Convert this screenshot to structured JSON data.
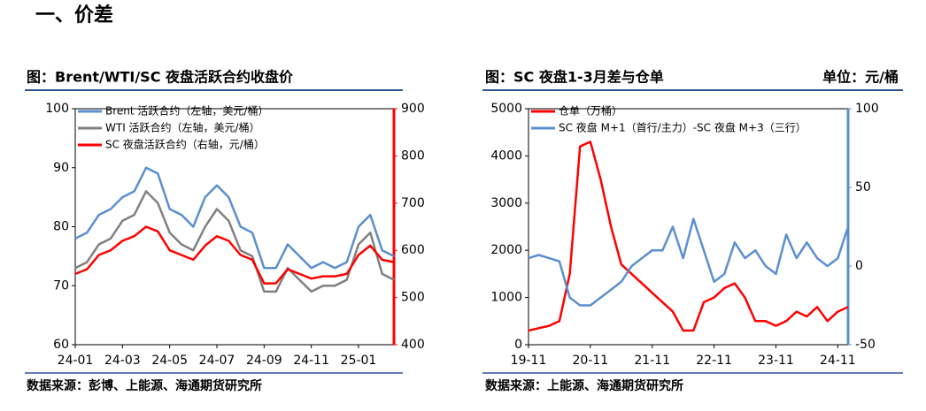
{
  "heading": "一、价差",
  "chart_data": [
    {
      "type": "line",
      "title": "图：Brent/WTI/SC 夜盘活跃合约收盘价",
      "source": "数据来源：彭博、上能源、海通期货研究所",
      "categories": [
        "24-01",
        null,
        null,
        null,
        "24-03",
        null,
        null,
        null,
        "24-05",
        null,
        null,
        null,
        "24-07",
        null,
        null,
        null,
        "24-09",
        null,
        null,
        null,
        "24-11",
        null,
        null,
        null,
        "25-01",
        null,
        null,
        null
      ],
      "ylim": [
        60,
        100
      ],
      "yticks": [
        60,
        70,
        80,
        90,
        100
      ],
      "y2lim": [
        400,
        900
      ],
      "y2ticks": [
        400,
        500,
        600,
        700,
        800,
        900
      ],
      "y2color": "#ff0000",
      "legend": "upper left",
      "series": [
        {
          "name": "Brent 活跃合约（左轴，美元/桶）",
          "color": "#5b8fd0",
          "values": [
            78,
            79,
            82,
            83,
            85,
            86,
            90,
            89,
            83,
            82,
            80,
            85,
            87,
            85,
            80,
            79,
            73,
            73,
            77,
            75,
            73,
            74,
            73,
            74,
            80,
            82,
            76,
            75
          ]
        },
        {
          "name": "WTI 活跃合约（左轴，美元/桶）",
          "color": "#808080",
          "values": [
            73,
            74,
            77,
            78,
            81,
            82,
            86,
            84,
            79,
            77,
            76,
            80,
            83,
            81,
            76,
            75,
            69,
            69,
            73,
            71,
            69,
            70,
            70,
            71,
            77,
            79,
            72,
            71
          ]
        },
        {
          "name": "SC 夜盘活跃合约（右轴，元/桶）",
          "color": "#ff0000",
          "axis": "y2",
          "values": [
            550,
            560,
            590,
            600,
            620,
            630,
            650,
            640,
            600,
            590,
            580,
            610,
            630,
            620,
            590,
            580,
            530,
            530,
            560,
            550,
            540,
            545,
            545,
            550,
            590,
            610,
            580,
            575
          ]
        }
      ]
    },
    {
      "type": "line",
      "title": "图：SC 夜盘1-3月差与仓单",
      "unit": "单位：元/桶",
      "source": "数据来源：上能源、海通期货研究所",
      "categories": [
        "19-11",
        null,
        null,
        null,
        null,
        null,
        "20-11",
        null,
        null,
        null,
        null,
        null,
        "21-11",
        null,
        null,
        null,
        null,
        null,
        "22-11",
        null,
        null,
        null,
        null,
        null,
        "23-11",
        null,
        null,
        null,
        null,
        null,
        "24-11",
        null
      ],
      "ylim": [
        0,
        5000
      ],
      "yticks": [
        0,
        1000,
        2000,
        3000,
        4000,
        5000
      ],
      "y2lim": [
        -50,
        100
      ],
      "y2ticks": [
        -50,
        0,
        50,
        100
      ],
      "y2color": "#5b8fd0",
      "legend": "upper left",
      "series": [
        {
          "name": "仓单（万桶）",
          "color": "#ff0000",
          "values": [
            300,
            350,
            400,
            500,
            1500,
            4200,
            4300,
            3500,
            2500,
            1700,
            1500,
            1300,
            1100,
            900,
            700,
            300,
            300,
            900,
            1000,
            1200,
            1300,
            1000,
            500,
            500,
            400,
            500,
            700,
            600,
            800,
            500,
            700,
            800
          ]
        },
        {
          "name": "SC 夜盘 M+1（首行/主力）-SC 夜盘 M+3（三行）",
          "color": "#5b8fd0",
          "axis": "y2",
          "values": [
            5,
            7,
            5,
            3,
            -20,
            -25,
            -25,
            -20,
            -15,
            -10,
            0,
            5,
            10,
            10,
            25,
            5,
            30,
            10,
            -10,
            -5,
            15,
            5,
            10,
            0,
            -5,
            20,
            5,
            15,
            5,
            0,
            5,
            25
          ]
        }
      ]
    }
  ]
}
